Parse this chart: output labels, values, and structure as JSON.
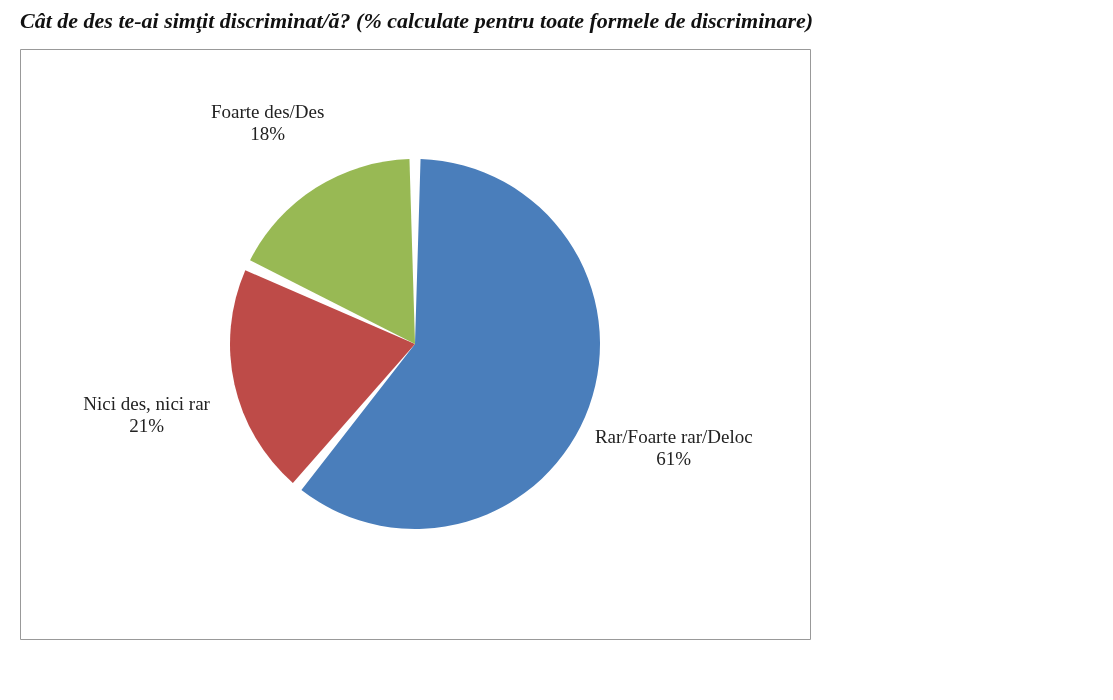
{
  "chart_data": {
    "type": "pie",
    "title": "Cât de des te-ai simţit discriminat/ă? (% calculate pentru toate formele de discriminare)",
    "categories": [
      "Rar/Foarte rar/Deloc",
      "Nici des, nici rar",
      "Foarte des/Des"
    ],
    "values": [
      61,
      21,
      18
    ],
    "value_labels": [
      "61%",
      "21%",
      "18%"
    ],
    "colors": [
      "#4a7ebb",
      "#be4b48",
      "#98b954"
    ]
  }
}
